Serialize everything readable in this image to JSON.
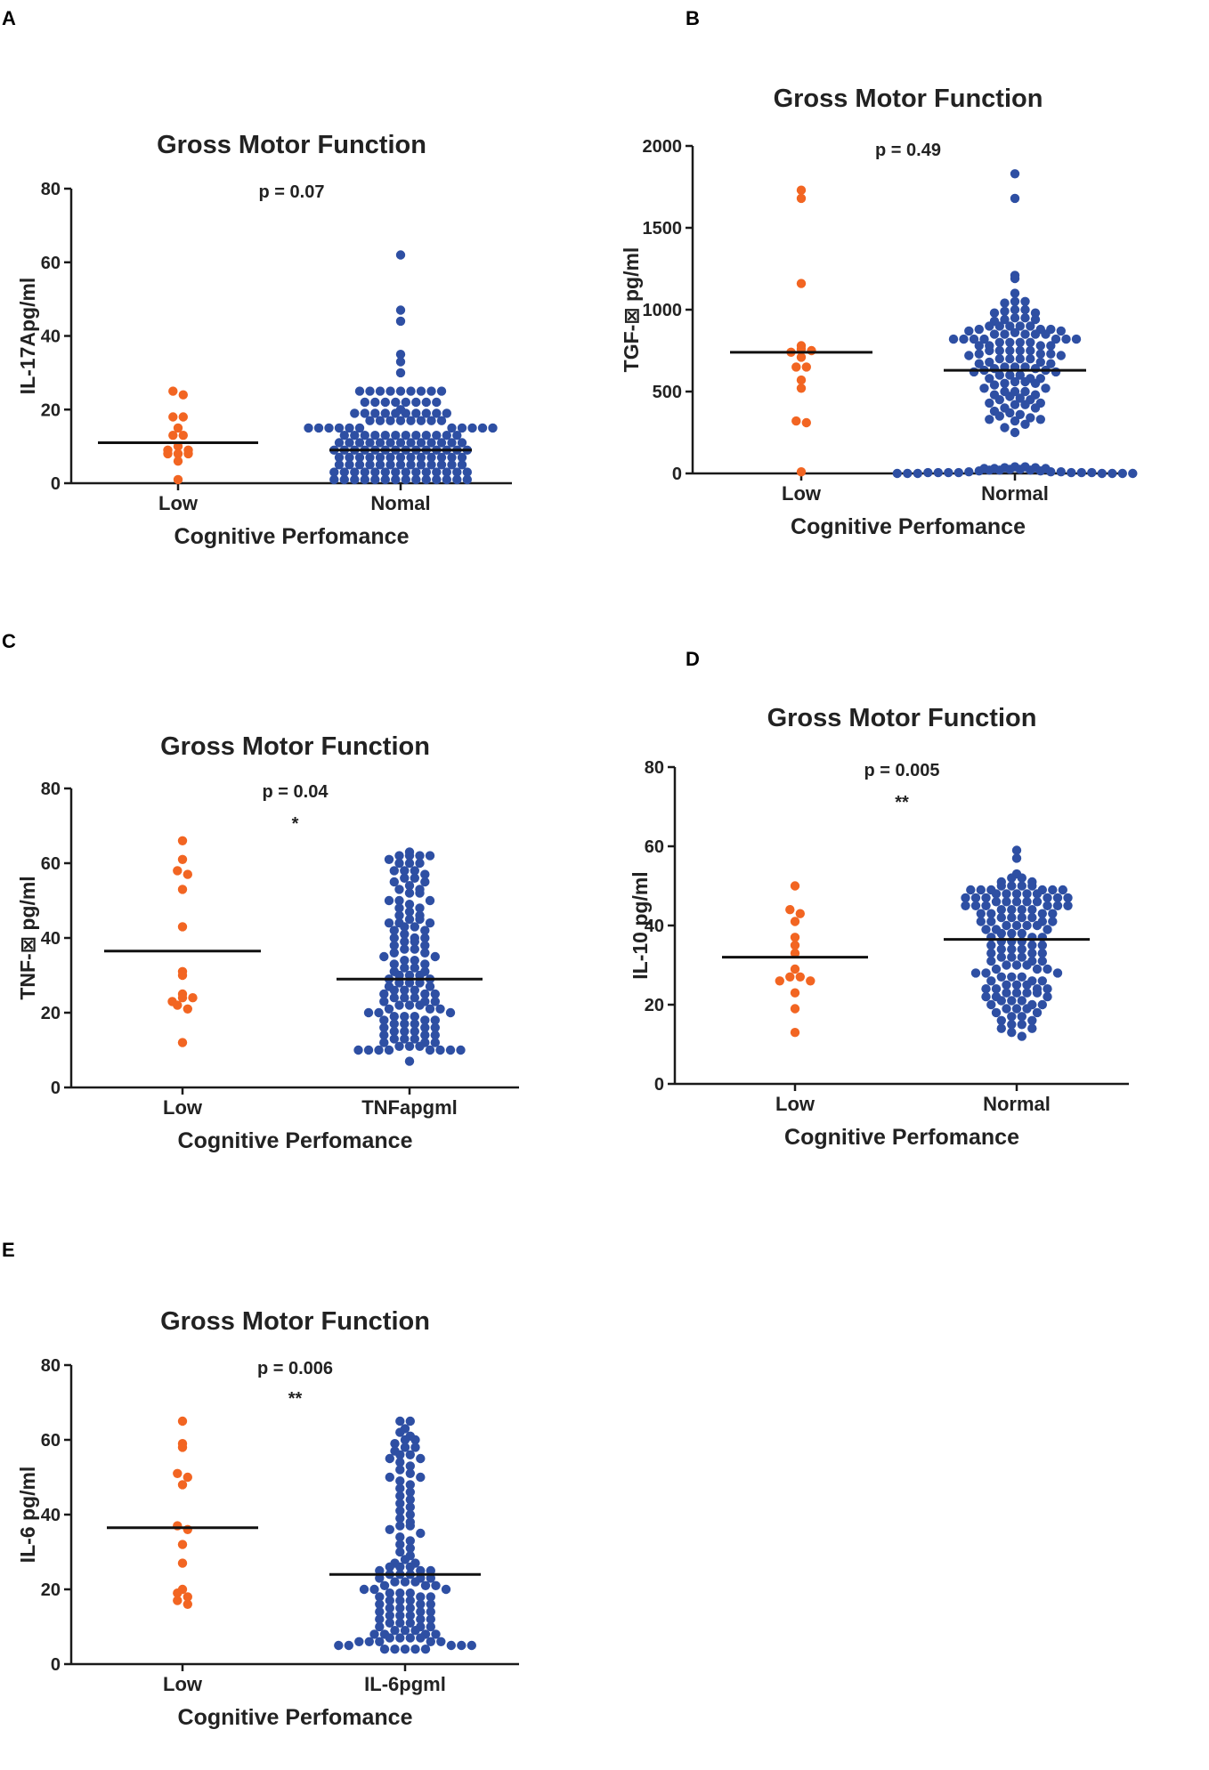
{
  "figure": {
    "colors": {
      "low": "#f26522",
      "normal": "#2e4fa3",
      "axis": "#1a1a1a",
      "median": "#111111"
    }
  },
  "chart_data": [
    {
      "panel": "A",
      "type": "scatter",
      "title": "Gross Motor Function",
      "pvalue": "p = 0.07",
      "stars": "",
      "ylabel": "IL-17Apg/ml",
      "xlabel": "Cognitive Perfomance",
      "categories": [
        "Low",
        "Nomal"
      ],
      "ylim": [
        0,
        80
      ],
      "yticks": [
        0,
        20,
        40,
        60,
        80
      ],
      "yticklabels": [
        "0",
        "20",
        "40",
        "60",
        "80"
      ],
      "lines": [
        11,
        9
      ],
      "series": [
        {
          "name": "Low",
          "values": [
            25,
            24,
            18,
            18,
            15,
            13,
            13,
            10,
            9,
            9,
            8,
            8,
            8,
            6,
            1
          ]
        },
        {
          "name": "Nomal",
          "values": [
            62,
            47,
            44,
            35,
            33,
            30,
            25,
            25,
            25,
            25,
            25,
            25,
            25,
            25,
            25,
            22,
            22,
            22,
            22,
            22,
            22,
            22,
            22,
            20,
            19,
            19,
            19,
            19,
            19,
            19,
            19,
            19,
            19,
            19,
            17,
            17,
            17,
            17,
            17,
            17,
            17,
            17,
            15,
            15,
            15,
            15,
            15,
            15,
            15,
            15,
            15,
            15,
            15,
            13,
            13,
            13,
            13,
            13,
            13,
            13,
            13,
            13,
            13,
            13,
            13,
            11,
            11,
            11,
            11,
            11,
            11,
            11,
            11,
            11,
            11,
            11,
            11,
            11,
            9,
            9,
            9,
            9,
            9,
            9,
            9,
            9,
            9,
            9,
            9,
            9,
            9,
            9,
            7,
            7,
            7,
            7,
            7,
            7,
            7,
            7,
            7,
            7,
            7,
            7,
            7,
            5,
            5,
            5,
            5,
            5,
            5,
            5,
            5,
            5,
            5,
            5,
            5,
            5,
            3,
            3,
            3,
            3,
            3,
            3,
            3,
            3,
            3,
            3,
            3,
            3,
            3,
            3,
            1,
            1,
            1,
            1,
            1,
            1,
            1,
            1,
            1,
            1,
            1,
            1,
            1,
            1
          ]
        }
      ]
    },
    {
      "panel": "B",
      "type": "scatter",
      "title": "Gross Motor Function",
      "pvalue": "p = 0.49",
      "stars": "",
      "ylabel": "TGF-⊠ pg/ml",
      "xlabel": "Cognitive Perfomance",
      "categories": [
        "Low",
        "Normal"
      ],
      "ylim": [
        0,
        2000
      ],
      "yticks": [
        0,
        500,
        1000,
        1500,
        2000
      ],
      "yticklabels": [
        "0",
        "500",
        "1000",
        "1500",
        "2000"
      ],
      "lines": [
        740,
        630
      ],
      "series": [
        {
          "name": "Low",
          "values": [
            1730,
            1680,
            1160,
            780,
            760,
            750,
            740,
            710,
            650,
            650,
            570,
            520,
            320,
            310,
            10
          ]
        },
        {
          "name": "Normal",
          "values": [
            1830,
            1680,
            1210,
            1190,
            1100,
            1050,
            1050,
            1040,
            1000,
            1000,
            990,
            980,
            980,
            950,
            950,
            940,
            940,
            930,
            900,
            900,
            900,
            900,
            900,
            880,
            880,
            880,
            870,
            870,
            860,
            850,
            850,
            850,
            850,
            850,
            820,
            820,
            820,
            820,
            820,
            820,
            820,
            800,
            800,
            800,
            800,
            780,
            780,
            780,
            780,
            750,
            750,
            750,
            750,
            750,
            730,
            730,
            730,
            720,
            720,
            700,
            700,
            700,
            700,
            680,
            680,
            670,
            670,
            650,
            650,
            650,
            640,
            640,
            630,
            630,
            620,
            620,
            600,
            600,
            600,
            580,
            580,
            580,
            560,
            560,
            550,
            550,
            540,
            520,
            520,
            500,
            500,
            500,
            480,
            480,
            470,
            460,
            450,
            450,
            430,
            430,
            420,
            420,
            400,
            400,
            380,
            370,
            360,
            350,
            340,
            330,
            330,
            320,
            300,
            280,
            250,
            40,
            40,
            35,
            35,
            30,
            30,
            30,
            25,
            25,
            20,
            20,
            20,
            15,
            15,
            10,
            10,
            10,
            5,
            5,
            5,
            5,
            5,
            5,
            5,
            0,
            0,
            0,
            0,
            0,
            0,
            0
          ]
        }
      ]
    },
    {
      "panel": "C",
      "type": "scatter",
      "title": "Gross Motor Function",
      "pvalue": "p = 0.04",
      "stars": "*",
      "ylabel": "TNF-⊠ pg/ml",
      "xlabel": "Cognitive Perfomance",
      "categories": [
        "Low",
        "TNFapgml"
      ],
      "ylim": [
        0,
        80
      ],
      "yticks": [
        0,
        20,
        40,
        60,
        80
      ],
      "yticklabels": [
        "0",
        "20",
        "40",
        "60",
        "80"
      ],
      "lines": [
        36.5,
        29
      ],
      "series": [
        {
          "name": "Low",
          "values": [
            66,
            61,
            58,
            57,
            53,
            43,
            31,
            30,
            25,
            24,
            24,
            23,
            22,
            21,
            12
          ]
        },
        {
          "name": "TNFapgml",
          "values": [
            63,
            62,
            62,
            62,
            62,
            61,
            60,
            60,
            60,
            58,
            58,
            58,
            57,
            56,
            56,
            55,
            55,
            54,
            53,
            53,
            52,
            52,
            50,
            50,
            50,
            49,
            48,
            48,
            47,
            46,
            46,
            45,
            45,
            44,
            44,
            44,
            43,
            43,
            42,
            42,
            41,
            40,
            40,
            40,
            39,
            39,
            38,
            38,
            37,
            37,
            36,
            36,
            35,
            35,
            34,
            34,
            33,
            33,
            32,
            32,
            31,
            31,
            30,
            30,
            30,
            29,
            29,
            28,
            28,
            28,
            27,
            27,
            26,
            26,
            26,
            25,
            25,
            25,
            24,
            24,
            24,
            23,
            23,
            23,
            22,
            22,
            22,
            21,
            21,
            21,
            20,
            20,
            20,
            19,
            19,
            19,
            18,
            18,
            18,
            17,
            17,
            17,
            16,
            16,
            16,
            15,
            15,
            15,
            14,
            14,
            14,
            13,
            13,
            13,
            12,
            12,
            12,
            11,
            11,
            11,
            10,
            10,
            10,
            10,
            10,
            10,
            10,
            10,
            7
          ]
        }
      ]
    },
    {
      "panel": "D",
      "type": "scatter",
      "title": "Gross Motor Function",
      "pvalue": "p = 0.005",
      "stars": "**",
      "ylabel": "IL-10 pg/ml",
      "xlabel": "Cognitive Perfomance",
      "categories": [
        "Low",
        "Normal"
      ],
      "ylim": [
        0,
        80
      ],
      "yticks": [
        0,
        20,
        40,
        60,
        80
      ],
      "yticklabels": [
        "0",
        "20",
        "40",
        "60",
        "80"
      ],
      "lines": [
        32,
        36.5
      ],
      "series": [
        {
          "name": "Low",
          "values": [
            50,
            44,
            43,
            41,
            37,
            35,
            33,
            29,
            27,
            27,
            26,
            26,
            23,
            19,
            13
          ]
        },
        {
          "name": "Normal",
          "values": [
            59,
            57,
            53,
            52,
            52,
            51,
            51,
            50,
            50,
            50,
            50,
            49,
            49,
            49,
            49,
            49,
            49,
            48,
            48,
            48,
            48,
            48,
            47,
            47,
            47,
            47,
            47,
            47,
            46,
            46,
            46,
            46,
            46,
            45,
            45,
            45,
            45,
            45,
            45,
            44,
            44,
            44,
            44,
            43,
            43,
            43,
            43,
            42,
            42,
            42,
            42,
            41,
            41,
            41,
            41,
            40,
            40,
            40,
            40,
            39,
            39,
            39,
            38,
            38,
            38,
            37,
            37,
            37,
            36,
            36,
            36,
            35,
            35,
            35,
            34,
            34,
            34,
            33,
            33,
            33,
            32,
            32,
            32,
            31,
            31,
            31,
            30,
            30,
            30,
            29,
            29,
            29,
            28,
            28,
            28,
            27,
            27,
            27,
            26,
            26,
            26,
            25,
            25,
            25,
            24,
            24,
            24,
            24,
            23,
            23,
            23,
            23,
            22,
            22,
            22,
            21,
            21,
            21,
            20,
            20,
            20,
            19,
            19,
            19,
            18,
            18,
            17,
            17,
            16,
            16,
            15,
            15,
            14,
            14,
            13,
            12
          ]
        }
      ]
    },
    {
      "panel": "E",
      "type": "scatter",
      "title": "Gross Motor Function",
      "pvalue": "p = 0.006",
      "stars": "**",
      "ylabel": "IL-6 pg/ml",
      "xlabel": "Cognitive Perfomance",
      "categories": [
        "Low",
        "IL-6pgml"
      ],
      "ylim": [
        0,
        80
      ],
      "yticks": [
        0,
        20,
        40,
        60,
        80
      ],
      "yticklabels": [
        "0",
        "20",
        "40",
        "60",
        "80"
      ],
      "lines": [
        36.5,
        24
      ],
      "series": [
        {
          "name": "Low",
          "values": [
            65,
            59,
            58,
            51,
            50,
            48,
            37,
            36,
            32,
            27,
            20,
            19,
            18,
            17,
            16
          ]
        },
        {
          "name": "IL-6pgml",
          "values": [
            65,
            65,
            63,
            62,
            61,
            60,
            60,
            59,
            58,
            58,
            57,
            56,
            56,
            55,
            55,
            54,
            53,
            52,
            51,
            50,
            50,
            49,
            48,
            47,
            46,
            45,
            44,
            43,
            42,
            41,
            40,
            39,
            38,
            37,
            37,
            36,
            35,
            34,
            33,
            32,
            31,
            30,
            29,
            28,
            27,
            27,
            26,
            26,
            26,
            25,
            25,
            25,
            24,
            24,
            24,
            23,
            23,
            23,
            22,
            22,
            22,
            21,
            21,
            21,
            20,
            20,
            20,
            19,
            19,
            19,
            18,
            18,
            18,
            17,
            17,
            17,
            16,
            16,
            16,
            15,
            15,
            15,
            14,
            14,
            14,
            13,
            13,
            13,
            12,
            12,
            12,
            11,
            11,
            11,
            10,
            10,
            10,
            9,
            9,
            9,
            8,
            8,
            8,
            8,
            7,
            7,
            7,
            7,
            6,
            6,
            6,
            6,
            6,
            5,
            5,
            5,
            5,
            5,
            4,
            4,
            4,
            4,
            4
          ]
        }
      ]
    }
  ]
}
